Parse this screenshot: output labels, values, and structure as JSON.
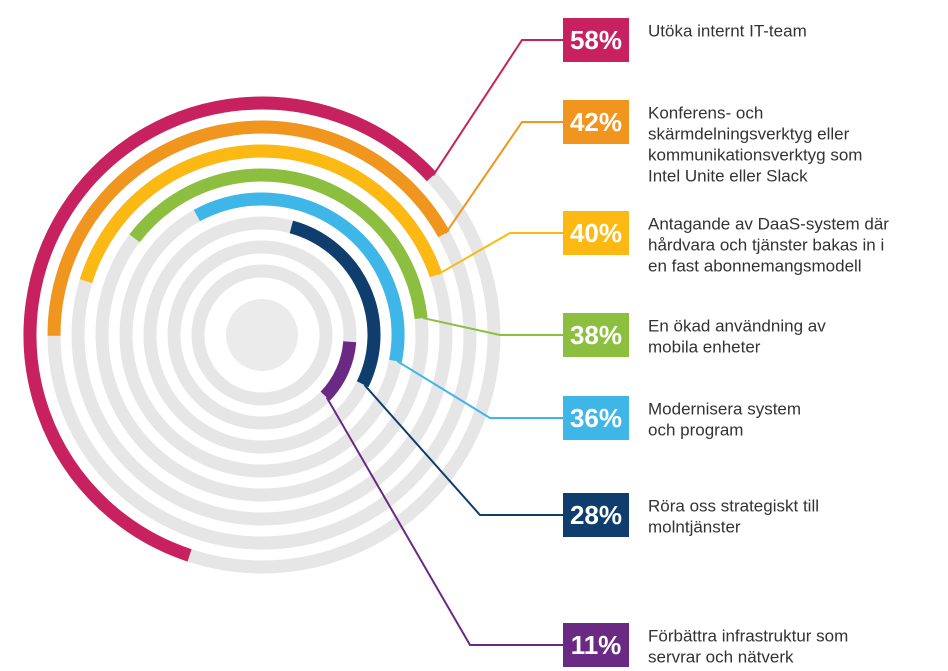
{
  "chart_data": {
    "type": "radial_bar",
    "categories": [
      [
        "Utöka internt IT-team"
      ],
      [
        "Konferens- och",
        "skärmdelningsverktyg eller",
        "kommunikationsverktyg som",
        "Intel Unite eller Slack"
      ],
      [
        "Antagande av DaaS-system där",
        "hårdvara och tjänster bakas in i",
        "en fast abonnemangsmodell"
      ],
      [
        "En ökad användning av",
        "mobila enheter"
      ],
      [
        "Modernisera system",
        "och program"
      ],
      [
        "Röra oss strategiskt till",
        "molntjänster"
      ],
      [
        "Förbättra infrastruktur som",
        "servrar och nätverk"
      ]
    ],
    "values": [
      58,
      42,
      40,
      38,
      36,
      28,
      11
    ],
    "value_labels": [
      "58%",
      "42%",
      "40%",
      "38%",
      "36%",
      "28%",
      "11%"
    ],
    "colors": [
      "#c8215f",
      "#f0961e",
      "#fdb913",
      "#8cbf3f",
      "#3fb6e8",
      "#0f3e6e",
      "#6a2a83"
    ],
    "vmax": 100
  }
}
